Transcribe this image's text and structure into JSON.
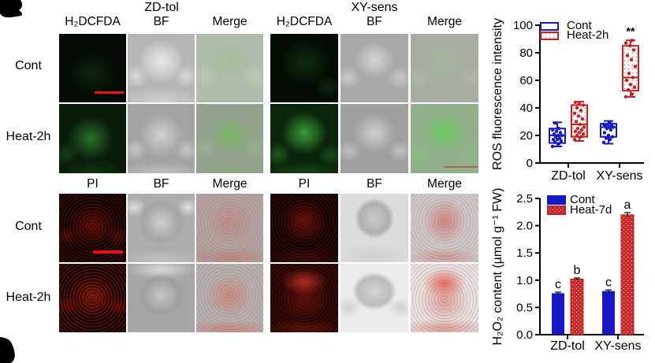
{
  "panels": {
    "group1_title": "ZD-tol",
    "group2_title": "XY-sens",
    "fluor_label": "H₂DCFDA",
    "bf_label": "BF",
    "merge_label": "Merge",
    "pi_label": "PI",
    "cont_label": "Cont",
    "heat2h_label": "Heat-2h"
  },
  "colors": {
    "cont_blue": "#1717c3",
    "heat_red": "#c32122",
    "scalebar_red": "#f01010"
  },
  "chart_data": [
    {
      "type": "box",
      "title": "",
      "ylabel": "ROS fluorescence intensity",
      "xlabel": "",
      "ylim": [
        0,
        100
      ],
      "yticks": [
        0,
        20,
        40,
        60,
        80,
        100
      ],
      "categories": [
        "ZD-tol",
        "XY-sens"
      ],
      "legend_position": "upper-left",
      "grid": false,
      "series": [
        {
          "name": "Cont",
          "color": "#1717c3",
          "pattern": "open",
          "boxes": [
            {
              "category": "ZD-tol",
              "low": 12,
              "q1": 14.5,
              "median": 20,
              "q3": 25,
              "high": 29.5,
              "points": [
                12,
                14,
                15,
                16,
                17,
                17,
                18,
                19,
                20,
                20,
                21,
                22,
                23,
                24,
                25,
                29
              ]
            },
            {
              "category": "XY-sens",
              "low": 14,
              "q1": 19,
              "median": 26,
              "q3": 28.5,
              "high": 30.5,
              "points": [
                15,
                17,
                18,
                19,
                20,
                22,
                24,
                25,
                26,
                26,
                27,
                27,
                28,
                28,
                29
              ]
            }
          ]
        },
        {
          "name": "Heat-2h",
          "color": "#c32122",
          "pattern": "dots",
          "boxes": [
            {
              "category": "ZD-tol",
              "low": 16,
              "q1": 19,
              "median": 28,
              "q3": 42,
              "high": 44.5,
              "points": [
                17,
                19,
                20,
                21,
                22,
                23,
                24,
                25,
                26,
                28,
                30,
                32,
                34,
                36,
                38,
                40,
                42,
                43,
                44
              ]
            },
            {
              "category": "XY-sens",
              "low": 48,
              "q1": 52.5,
              "median": 62,
              "q3": 85,
              "high": 89,
              "annotation": "**",
              "points": [
                48,
                50,
                53,
                55,
                57,
                60,
                62,
                65,
                70,
                75,
                78,
                82,
                85,
                87,
                89
              ]
            }
          ]
        }
      ]
    },
    {
      "type": "bar",
      "title": "",
      "ylabel": "H₂O₂ content (µmol g⁻¹ FW)",
      "xlabel": "",
      "ylim": [
        0,
        2.5
      ],
      "yticks": [
        0,
        0.5,
        1,
        1.5,
        2,
        2.5
      ],
      "categories": [
        "ZD-tol",
        "XY-sens"
      ],
      "legend_position": "upper-left",
      "grid": false,
      "series": [
        {
          "name": "Cont",
          "color": "#1717c3",
          "pattern": "solid",
          "values": [
            0.76,
            0.8
          ],
          "errors": [
            0.02,
            0.02
          ],
          "letters": [
            "c",
            "c"
          ]
        },
        {
          "name": "Heat-7d",
          "color": "#c32122",
          "pattern": "dots",
          "values": [
            1.02,
            2.2
          ],
          "errors": [
            0.02,
            0.04
          ],
          "letters": [
            "b",
            "a"
          ]
        }
      ]
    }
  ]
}
